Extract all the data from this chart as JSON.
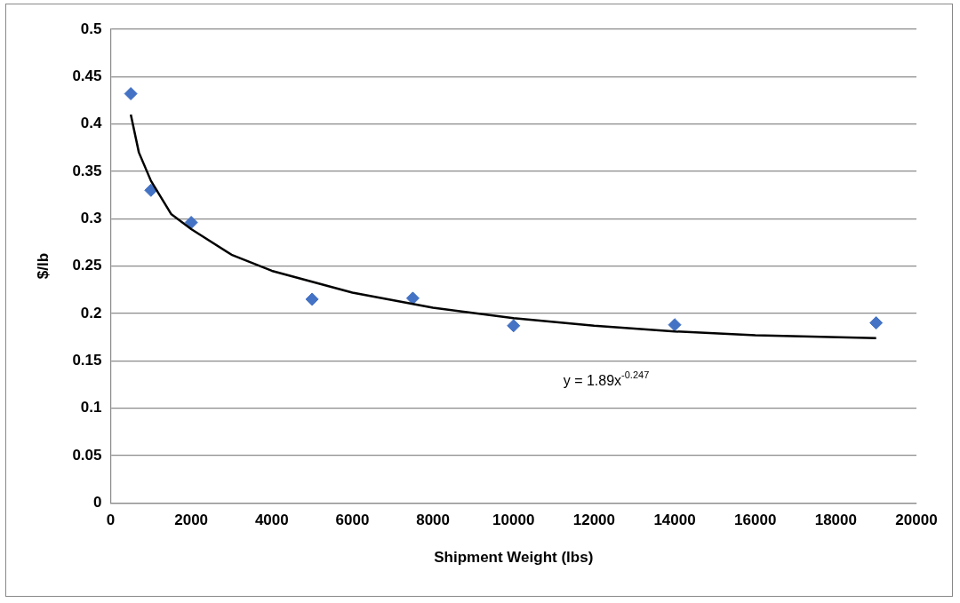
{
  "chart_data": {
    "type": "scatter",
    "xlabel": "Shipment Weight (lbs)",
    "ylabel": "$/lb",
    "xlim": [
      0,
      20000
    ],
    "xticks": [
      0,
      2000,
      4000,
      6000,
      8000,
      10000,
      12000,
      14000,
      16000,
      18000,
      20000
    ],
    "ylim": [
      0,
      0.5
    ],
    "yticks": [
      0,
      0.05,
      0.1,
      0.15,
      0.2,
      0.25,
      0.3,
      0.35,
      0.4,
      0.45,
      0.5
    ],
    "grid": "y",
    "legend": false,
    "marker": "diamond",
    "series": [
      {
        "color": "#4472c4",
        "x": [
          500,
          1000,
          2000,
          5000,
          7500,
          10000,
          14000,
          19000
        ],
        "values": [
          0.432,
          0.33,
          0.296,
          0.215,
          0.216,
          0.187,
          0.188,
          0.19
        ]
      },
      {
        "type": "line",
        "color": "#000000",
        "marker": "none",
        "x": [
          500,
          700,
          1000,
          1500,
          2000,
          3000,
          4000,
          6000,
          8000,
          10000,
          12000,
          14000,
          16000,
          19000
        ],
        "values": [
          0.41,
          0.37,
          0.34,
          0.305,
          0.289,
          0.262,
          0.245,
          0.222,
          0.206,
          0.195,
          0.187,
          0.181,
          0.177,
          0.174
        ]
      }
    ],
    "annotations": [
      "y = 1.89x$^{-0.247}$"
    ]
  }
}
